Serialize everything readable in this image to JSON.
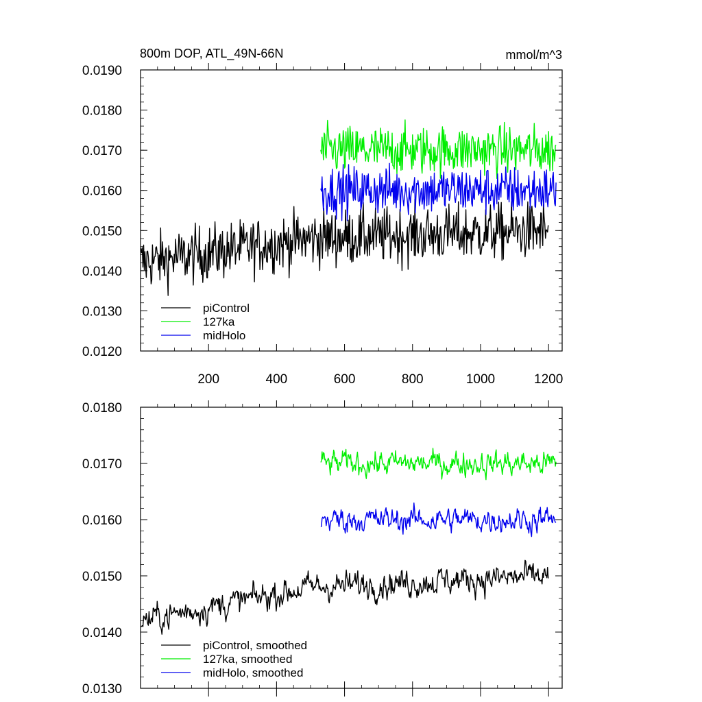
{
  "chart_data": [
    {
      "type": "line",
      "title": "800m DOP, ATL_49N-66N",
      "units_label": "mmol/m^3",
      "xlim": [
        0,
        1240
      ],
      "ylim": [
        0.012,
        0.019
      ],
      "x_ticks": [
        200,
        400,
        600,
        800,
        1000,
        1200
      ],
      "y_ticks": [
        0.012,
        0.013,
        0.014,
        0.015,
        0.016,
        0.017,
        0.018,
        0.019
      ],
      "y_tick_labels": [
        "0.0120",
        "0.0130",
        "0.0140",
        "0.0150",
        "0.0160",
        "0.0170",
        "0.0180",
        "0.0190"
      ],
      "x_tick_labels": [
        "200",
        "400",
        "600",
        "800",
        "1000",
        "1200"
      ],
      "legend_position": "bottom-left",
      "series": [
        {
          "name": "piControl",
          "color": "#000000",
          "x_range": [
            1,
            1200
          ],
          "mean_start": 0.0142,
          "mean_mid": 0.0148,
          "mean_end": 0.015,
          "noise": 0.00075
        },
        {
          "name": "127ka",
          "color": "#00ee00",
          "x_range": [
            530,
            1223
          ],
          "mean": 0.017,
          "noise": 0.00065
        },
        {
          "name": "midHolo",
          "color": "#0000ee",
          "x_range": [
            530,
            1223
          ],
          "mean": 0.016,
          "noise": 0.00065
        }
      ]
    },
    {
      "type": "line",
      "title": "",
      "xlim": [
        0,
        1240
      ],
      "ylim": [
        0.013,
        0.018
      ],
      "y_ticks": [
        0.013,
        0.014,
        0.015,
        0.016,
        0.017,
        0.018
      ],
      "y_tick_labels": [
        "0.0130",
        "0.0140",
        "0.0150",
        "0.0160",
        "0.0170",
        "0.0180"
      ],
      "legend_position": "bottom-left",
      "series": [
        {
          "name": "piControl, smoothed",
          "color": "#000000",
          "x_range": [
            1,
            1200
          ],
          "mean_start": 0.0142,
          "mean_mid": 0.0148,
          "mean_end": 0.015,
          "noise": 0.0005
        },
        {
          "name": "127ka, smoothed",
          "color": "#00ee00",
          "x_range": [
            530,
            1223
          ],
          "mean": 0.017,
          "noise": 0.00045
        },
        {
          "name": "midHolo, smoothed",
          "color": "#0000ee",
          "x_range": [
            530,
            1223
          ],
          "mean": 0.016,
          "noise": 0.00045
        }
      ]
    }
  ]
}
